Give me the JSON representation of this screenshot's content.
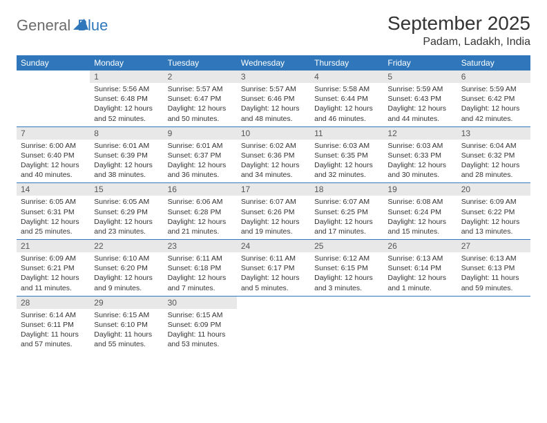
{
  "logo": {
    "text1": "General",
    "text2": "Blue"
  },
  "title": "September 2025",
  "location": "Padam, Ladakh, India",
  "colors": {
    "header_bg": "#2f77ba",
    "header_text": "#ffffff",
    "daynum_bg": "#e8e8e8",
    "daynum_text": "#555555",
    "body_text": "#333333",
    "rule": "#2f77ba",
    "logo_gray": "#6b6b6b",
    "logo_blue": "#2f77ba"
  },
  "dow": [
    "Sunday",
    "Monday",
    "Tuesday",
    "Wednesday",
    "Thursday",
    "Friday",
    "Saturday"
  ],
  "weeks": [
    [
      {
        "n": "",
        "sr": "",
        "ss": "",
        "dl": ""
      },
      {
        "n": "1",
        "sr": "Sunrise: 5:56 AM",
        "ss": "Sunset: 6:48 PM",
        "dl": "Daylight: 12 hours and 52 minutes."
      },
      {
        "n": "2",
        "sr": "Sunrise: 5:57 AM",
        "ss": "Sunset: 6:47 PM",
        "dl": "Daylight: 12 hours and 50 minutes."
      },
      {
        "n": "3",
        "sr": "Sunrise: 5:57 AM",
        "ss": "Sunset: 6:46 PM",
        "dl": "Daylight: 12 hours and 48 minutes."
      },
      {
        "n": "4",
        "sr": "Sunrise: 5:58 AM",
        "ss": "Sunset: 6:44 PM",
        "dl": "Daylight: 12 hours and 46 minutes."
      },
      {
        "n": "5",
        "sr": "Sunrise: 5:59 AM",
        "ss": "Sunset: 6:43 PM",
        "dl": "Daylight: 12 hours and 44 minutes."
      },
      {
        "n": "6",
        "sr": "Sunrise: 5:59 AM",
        "ss": "Sunset: 6:42 PM",
        "dl": "Daylight: 12 hours and 42 minutes."
      }
    ],
    [
      {
        "n": "7",
        "sr": "Sunrise: 6:00 AM",
        "ss": "Sunset: 6:40 PM",
        "dl": "Daylight: 12 hours and 40 minutes."
      },
      {
        "n": "8",
        "sr": "Sunrise: 6:01 AM",
        "ss": "Sunset: 6:39 PM",
        "dl": "Daylight: 12 hours and 38 minutes."
      },
      {
        "n": "9",
        "sr": "Sunrise: 6:01 AM",
        "ss": "Sunset: 6:37 PM",
        "dl": "Daylight: 12 hours and 36 minutes."
      },
      {
        "n": "10",
        "sr": "Sunrise: 6:02 AM",
        "ss": "Sunset: 6:36 PM",
        "dl": "Daylight: 12 hours and 34 minutes."
      },
      {
        "n": "11",
        "sr": "Sunrise: 6:03 AM",
        "ss": "Sunset: 6:35 PM",
        "dl": "Daylight: 12 hours and 32 minutes."
      },
      {
        "n": "12",
        "sr": "Sunrise: 6:03 AM",
        "ss": "Sunset: 6:33 PM",
        "dl": "Daylight: 12 hours and 30 minutes."
      },
      {
        "n": "13",
        "sr": "Sunrise: 6:04 AM",
        "ss": "Sunset: 6:32 PM",
        "dl": "Daylight: 12 hours and 28 minutes."
      }
    ],
    [
      {
        "n": "14",
        "sr": "Sunrise: 6:05 AM",
        "ss": "Sunset: 6:31 PM",
        "dl": "Daylight: 12 hours and 25 minutes."
      },
      {
        "n": "15",
        "sr": "Sunrise: 6:05 AM",
        "ss": "Sunset: 6:29 PM",
        "dl": "Daylight: 12 hours and 23 minutes."
      },
      {
        "n": "16",
        "sr": "Sunrise: 6:06 AM",
        "ss": "Sunset: 6:28 PM",
        "dl": "Daylight: 12 hours and 21 minutes."
      },
      {
        "n": "17",
        "sr": "Sunrise: 6:07 AM",
        "ss": "Sunset: 6:26 PM",
        "dl": "Daylight: 12 hours and 19 minutes."
      },
      {
        "n": "18",
        "sr": "Sunrise: 6:07 AM",
        "ss": "Sunset: 6:25 PM",
        "dl": "Daylight: 12 hours and 17 minutes."
      },
      {
        "n": "19",
        "sr": "Sunrise: 6:08 AM",
        "ss": "Sunset: 6:24 PM",
        "dl": "Daylight: 12 hours and 15 minutes."
      },
      {
        "n": "20",
        "sr": "Sunrise: 6:09 AM",
        "ss": "Sunset: 6:22 PM",
        "dl": "Daylight: 12 hours and 13 minutes."
      }
    ],
    [
      {
        "n": "21",
        "sr": "Sunrise: 6:09 AM",
        "ss": "Sunset: 6:21 PM",
        "dl": "Daylight: 12 hours and 11 minutes."
      },
      {
        "n": "22",
        "sr": "Sunrise: 6:10 AM",
        "ss": "Sunset: 6:20 PM",
        "dl": "Daylight: 12 hours and 9 minutes."
      },
      {
        "n": "23",
        "sr": "Sunrise: 6:11 AM",
        "ss": "Sunset: 6:18 PM",
        "dl": "Daylight: 12 hours and 7 minutes."
      },
      {
        "n": "24",
        "sr": "Sunrise: 6:11 AM",
        "ss": "Sunset: 6:17 PM",
        "dl": "Daylight: 12 hours and 5 minutes."
      },
      {
        "n": "25",
        "sr": "Sunrise: 6:12 AM",
        "ss": "Sunset: 6:15 PM",
        "dl": "Daylight: 12 hours and 3 minutes."
      },
      {
        "n": "26",
        "sr": "Sunrise: 6:13 AM",
        "ss": "Sunset: 6:14 PM",
        "dl": "Daylight: 12 hours and 1 minute."
      },
      {
        "n": "27",
        "sr": "Sunrise: 6:13 AM",
        "ss": "Sunset: 6:13 PM",
        "dl": "Daylight: 11 hours and 59 minutes."
      }
    ],
    [
      {
        "n": "28",
        "sr": "Sunrise: 6:14 AM",
        "ss": "Sunset: 6:11 PM",
        "dl": "Daylight: 11 hours and 57 minutes."
      },
      {
        "n": "29",
        "sr": "Sunrise: 6:15 AM",
        "ss": "Sunset: 6:10 PM",
        "dl": "Daylight: 11 hours and 55 minutes."
      },
      {
        "n": "30",
        "sr": "Sunrise: 6:15 AM",
        "ss": "Sunset: 6:09 PM",
        "dl": "Daylight: 11 hours and 53 minutes."
      },
      {
        "n": "",
        "sr": "",
        "ss": "",
        "dl": ""
      },
      {
        "n": "",
        "sr": "",
        "ss": "",
        "dl": ""
      },
      {
        "n": "",
        "sr": "",
        "ss": "",
        "dl": ""
      },
      {
        "n": "",
        "sr": "",
        "ss": "",
        "dl": ""
      }
    ]
  ]
}
